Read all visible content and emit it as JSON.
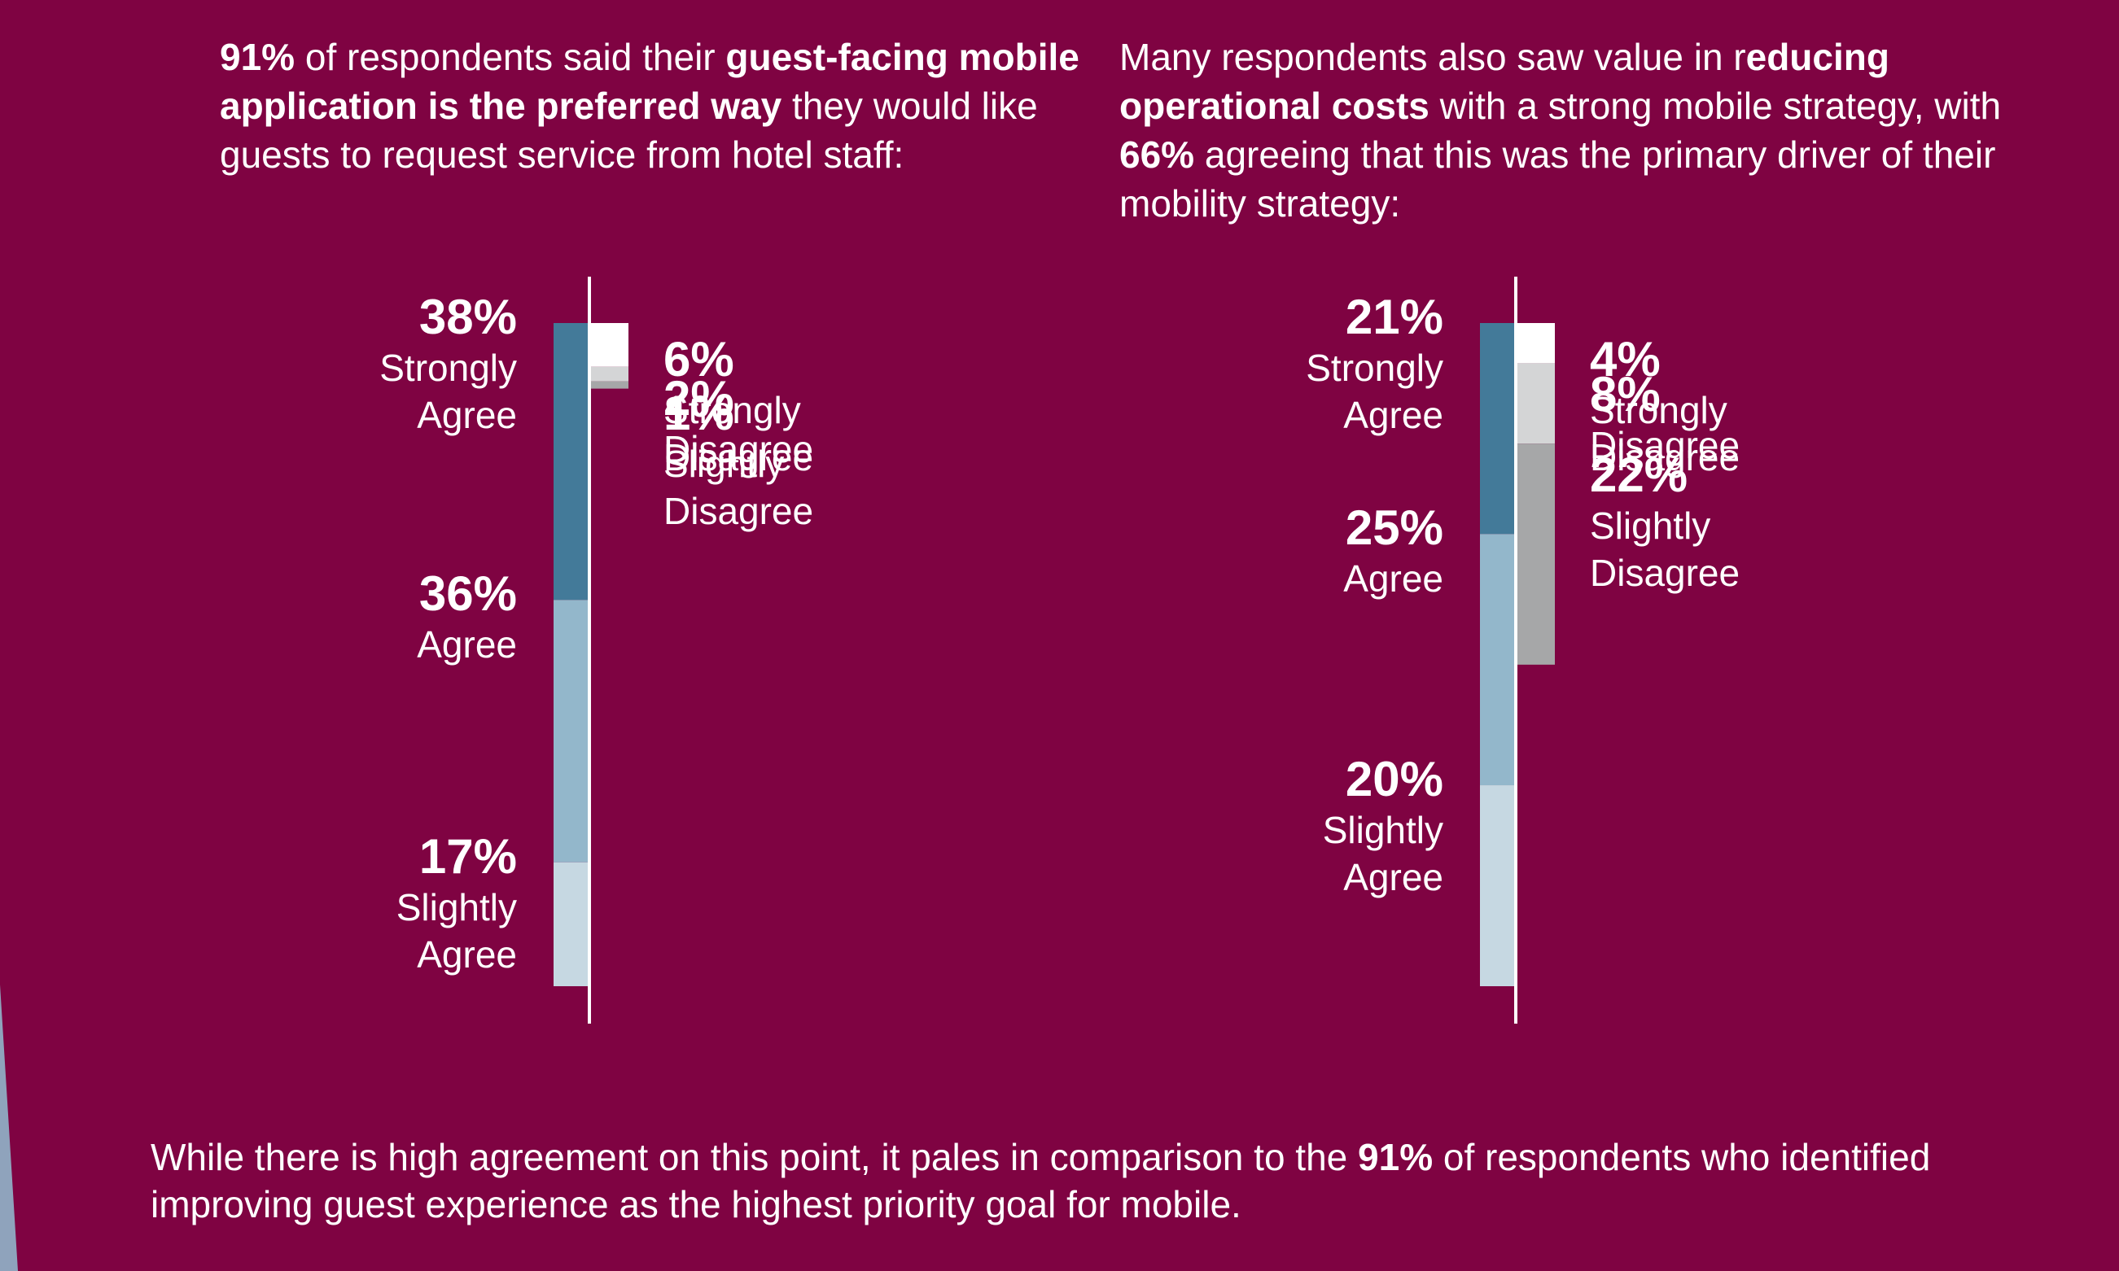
{
  "palette": {
    "background": "#7F0342",
    "strongly_agree": "#437A99",
    "agree": "#93B7CB",
    "slightly_agree": "#C6D8E2",
    "strongly_disagree": "#FFFFFF",
    "disagree": "#D4D5D6",
    "slightly_disagree": "#A6A7A8",
    "axis": "#FFFFFF",
    "corner_shape": "#8FA3BC"
  },
  "intro_left": {
    "b1": "91%",
    "t1": " of respondents said their ",
    "b2": "guest-facing mobile application is the preferred way",
    "t2": " they would like guests to request service from hotel staff:"
  },
  "intro_right": {
    "t1": "Many respondents also saw value in r",
    "b1": "educing operational costs",
    "t2": " with a strong mobile strategy, with ",
    "b2": "66%",
    "t3": " agreeing that this was the primary driver of their mobility strategy:"
  },
  "chart_data": [
    {
      "type": "bar",
      "orientation": "vertical-stacked-diverging",
      "series": [
        {
          "group": "agree",
          "categories": [
            "Strongly Agree",
            "Agree",
            "Slightly Agree"
          ],
          "values": [
            38,
            36,
            17
          ],
          "labels": [
            "38%",
            "36%",
            "17%"
          ],
          "label_lines": [
            [
              "Strongly",
              "Agree"
            ],
            [
              "Agree"
            ],
            [
              "Slightly",
              "Agree"
            ]
          ],
          "colors": [
            "#437A99",
            "#93B7CB",
            "#C6D8E2"
          ]
        },
        {
          "group": "disagree",
          "categories": [
            "Strongly Disagree",
            "Disagree",
            "Slightly Disagree"
          ],
          "values": [
            6,
            2,
            1
          ],
          "labels": [
            "6%",
            "2%",
            "1%"
          ],
          "label_lines": [
            [
              "Strongly",
              "Disagree"
            ],
            [
              "Disagree"
            ],
            [
              "Slightly",
              "Disagree"
            ]
          ],
          "colors": [
            "#FFFFFF",
            "#D4D5D6",
            "#A6A7A8"
          ]
        }
      ]
    },
    {
      "type": "bar",
      "orientation": "vertical-stacked-diverging",
      "series": [
        {
          "group": "agree",
          "categories": [
            "Strongly Agree",
            "Agree",
            "Slightly Agree"
          ],
          "values": [
            21,
            25,
            20
          ],
          "labels": [
            "21%",
            "25%",
            "20%"
          ],
          "label_lines": [
            [
              "Strongly",
              "Agree"
            ],
            [
              "Agree"
            ],
            [
              "Slightly",
              "Agree"
            ]
          ],
          "colors": [
            "#437A99",
            "#93B7CB",
            "#C6D8E2"
          ]
        },
        {
          "group": "disagree",
          "categories": [
            "Strongly Disagree",
            "Disagree",
            "Slightly Disagree"
          ],
          "values": [
            4,
            8,
            22
          ],
          "labels": [
            "4%",
            "8%",
            "22%"
          ],
          "label_lines": [
            [
              "Strongly",
              "Disagree"
            ],
            [
              "Disagree"
            ],
            [
              "Slightly",
              "Disagree"
            ]
          ],
          "colors": [
            "#FFFFFF",
            "#D4D5D6",
            "#A6A7A8"
          ]
        }
      ]
    }
  ],
  "footer": {
    "t1": "While there is high agreement on this point, it pales in comparison to the ",
    "b1": "91%",
    "t2": " of respondents who identified improving guest experience as the highest priority goal for mobile."
  }
}
